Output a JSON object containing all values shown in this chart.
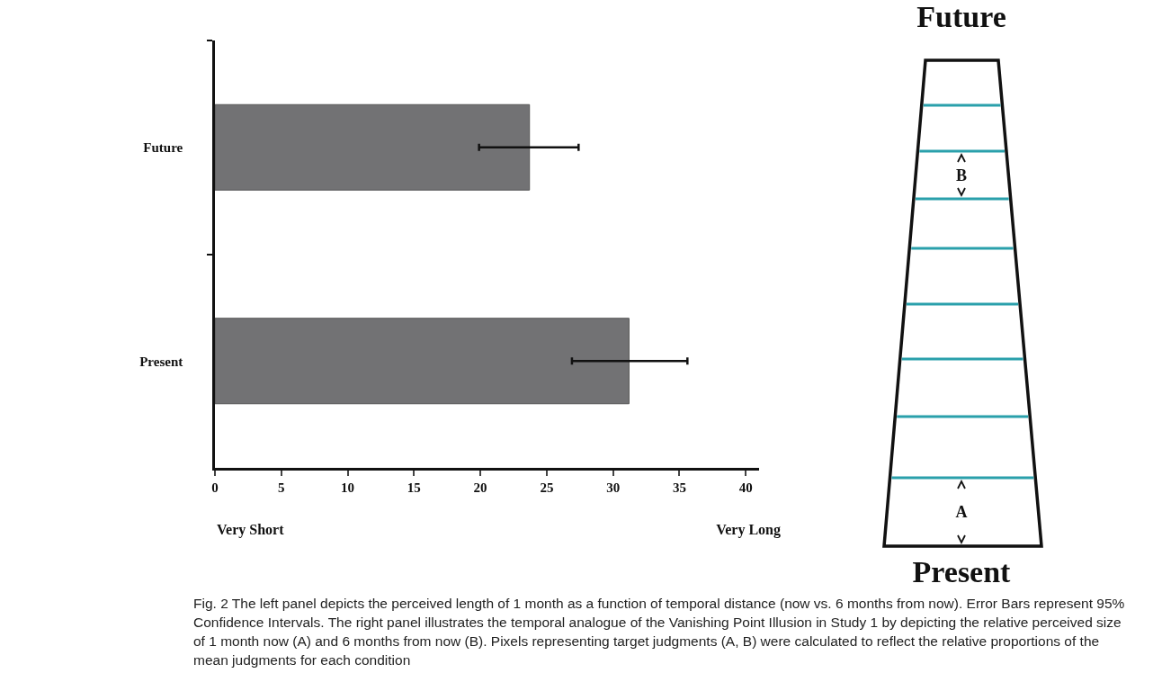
{
  "chart_data": {
    "type": "bar",
    "orientation": "horizontal",
    "categories": [
      "Future",
      "Present"
    ],
    "values": [
      23.7,
      31.2
    ],
    "errors": [
      [
        19.9,
        27.4
      ],
      [
        26.9,
        35.6
      ]
    ],
    "color": "#727274",
    "xlim": [
      0,
      41
    ],
    "xticks": [
      0,
      5,
      10,
      15,
      20,
      25,
      30,
      35,
      40
    ],
    "grid": false,
    "legend": false,
    "annotations": [
      "Very Short",
      "Very Long",
      "Future",
      "B",
      "A",
      "Present",
      "Fig. 2  The left panel depicts the perceived length of 1 month as a function of temporal distance (now vs. 6 months from now). Error Bars represent 95% Confidence Intervals. The right panel illustrates the temporal analogue of the Vanishing Point Illusion in Study 1 by depicting the relative perceived size of 1 month now (A) and 6 months from now (B). Pixels representing target judgments (A, B) were calculated to reflect the relative proportions of the mean judgments for each condition"
    ]
  }
}
